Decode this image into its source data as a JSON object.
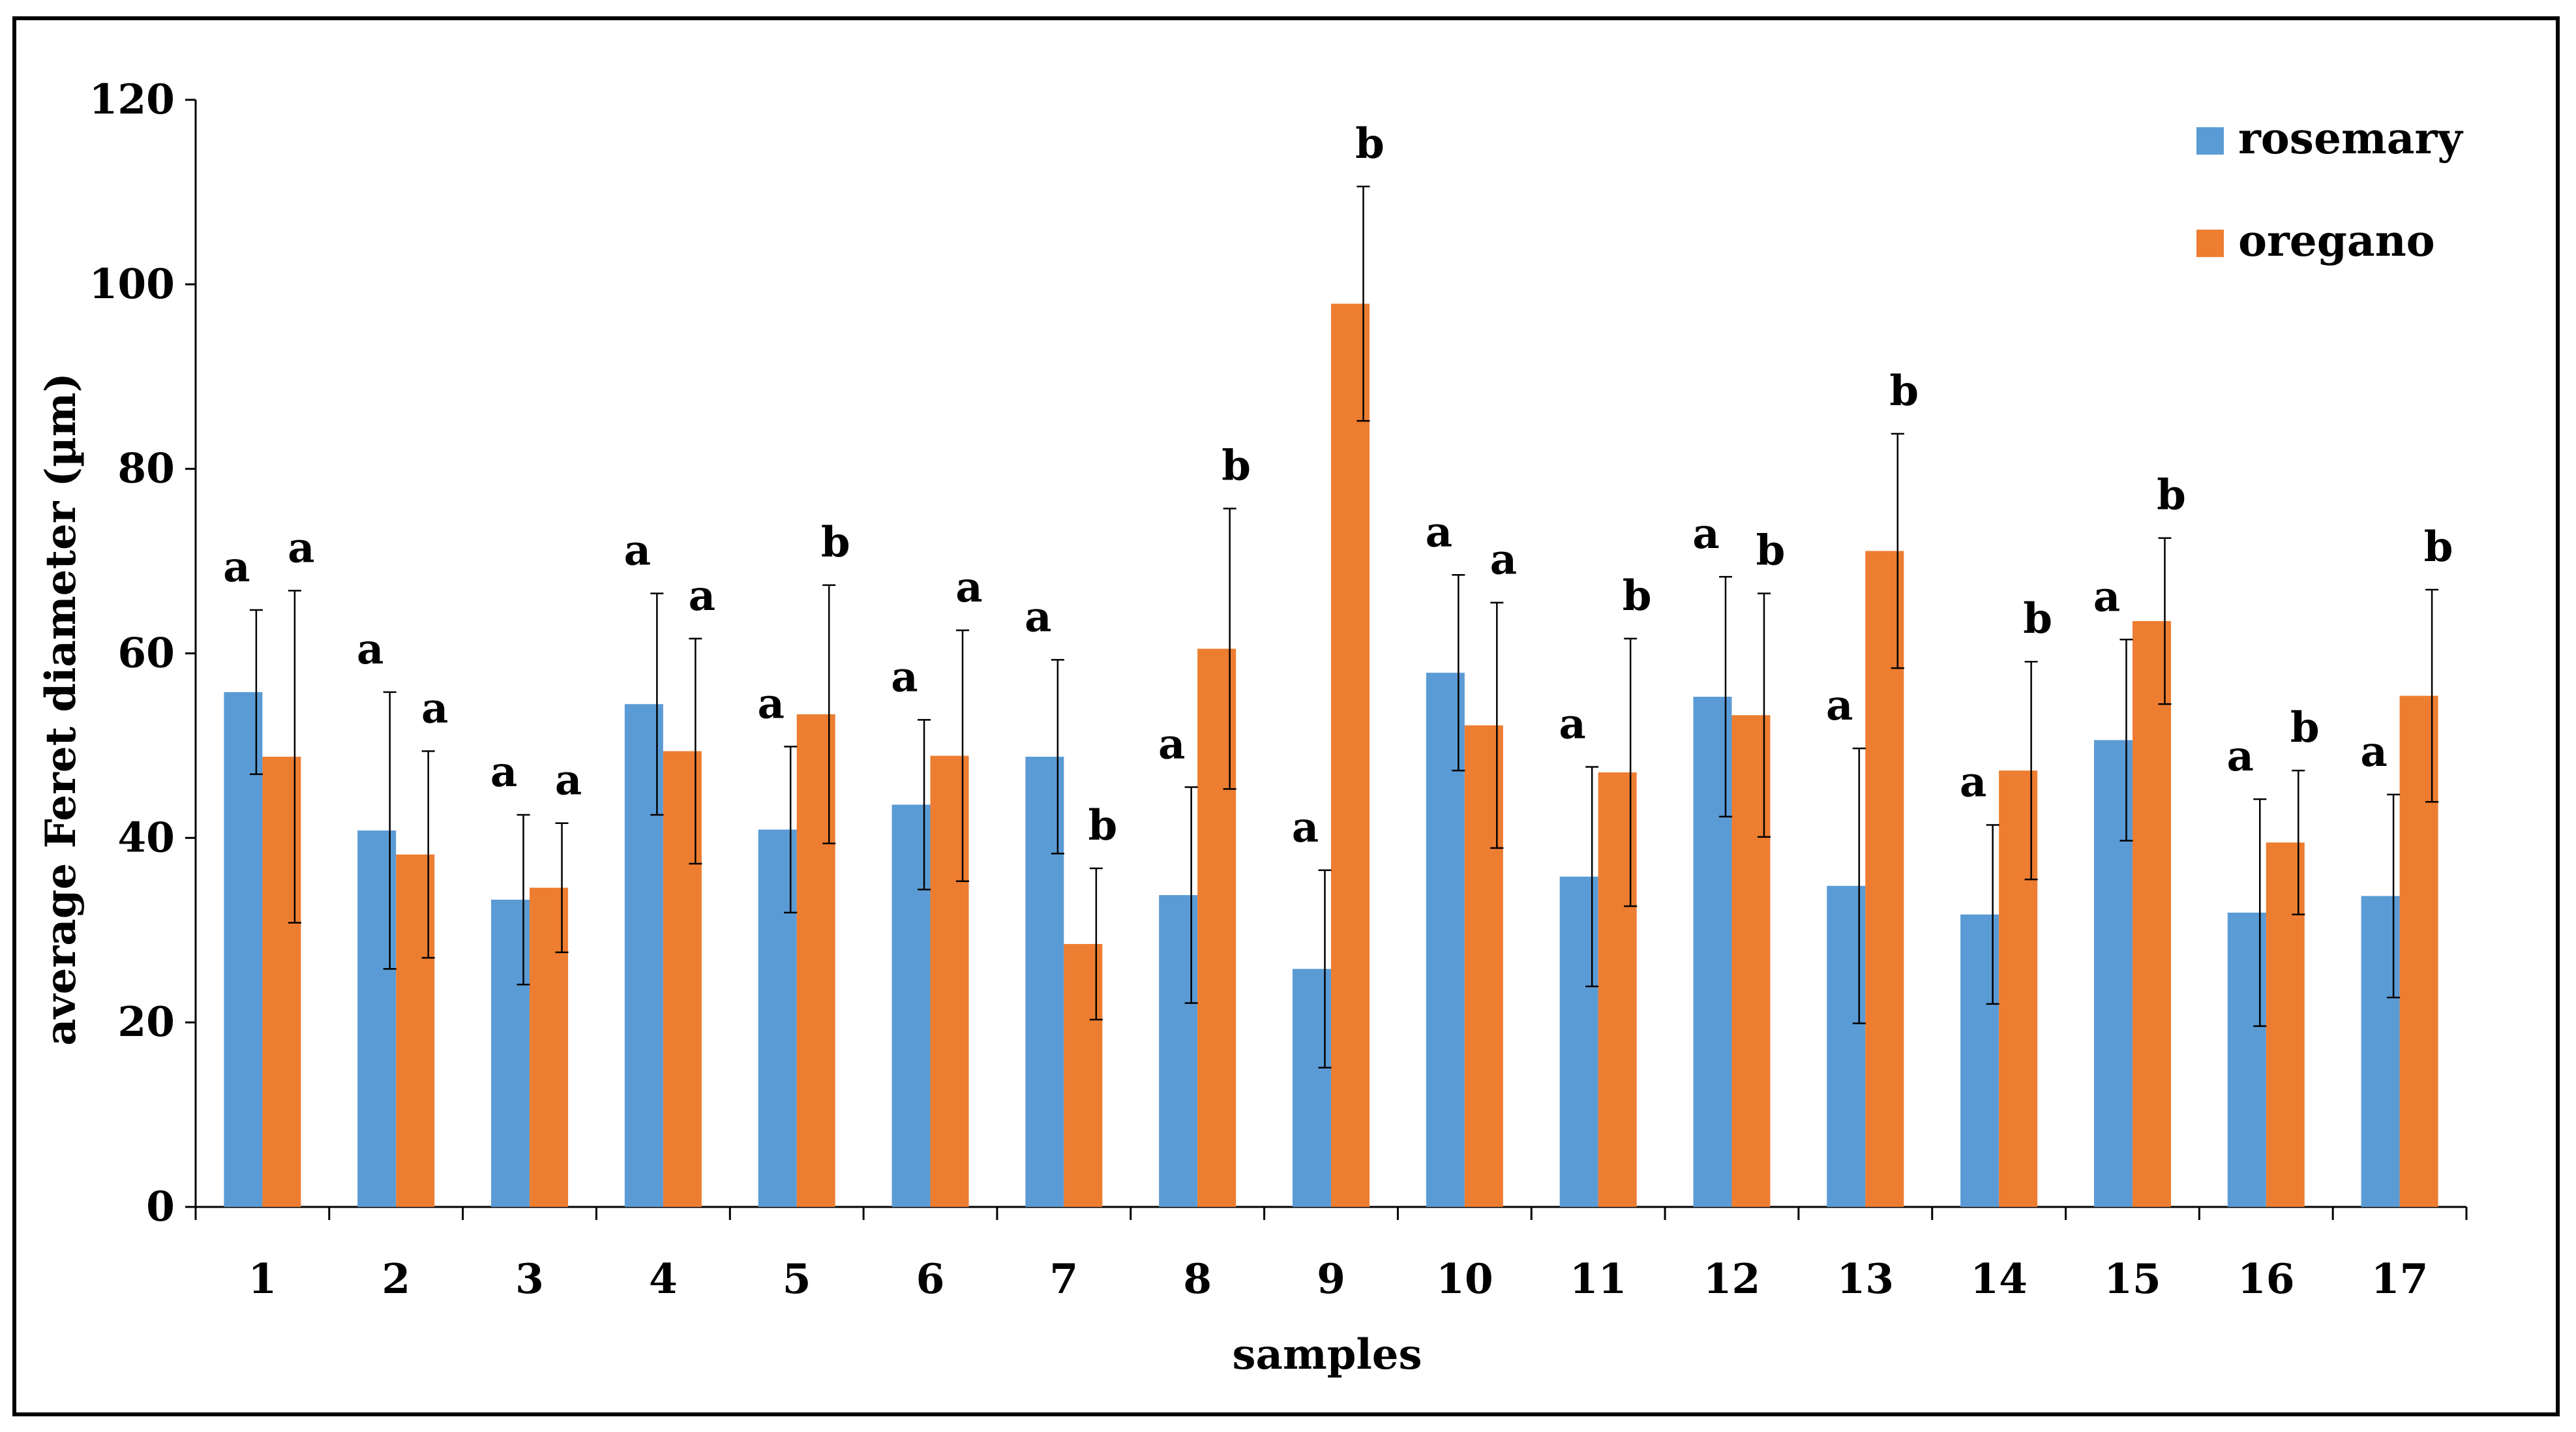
{
  "chart_data": {
    "type": "bar",
    "title": "",
    "xlabel": "samples",
    "ylabel": "average Feret diameter (µm)",
    "ylim": [
      0,
      120
    ],
    "yticks": [
      0,
      20,
      40,
      60,
      80,
      100,
      120
    ],
    "grid": false,
    "legend_position": "top-right",
    "categories": [
      "1",
      "2",
      "3",
      "4",
      "5",
      "6",
      "7",
      "8",
      "9",
      "10",
      "11",
      "12",
      "13",
      "14",
      "15",
      "16",
      "17"
    ],
    "series": [
      {
        "name": "rosemary",
        "color": "#5b9bd5",
        "values": [
          55.8,
          40.8,
          33.3,
          54.5,
          40.9,
          43.6,
          48.8,
          33.8,
          25.8,
          57.9,
          35.8,
          55.3,
          34.8,
          31.7,
          50.6,
          31.9,
          33.7
        ],
        "errors": [
          8.9,
          15.0,
          9.2,
          12.0,
          9.0,
          9.2,
          10.5,
          11.7,
          10.7,
          10.6,
          11.9,
          13.0,
          14.9,
          9.7,
          10.9,
          12.3,
          11.0
        ],
        "letters": [
          "a",
          "a",
          "a",
          "a",
          "a",
          "a",
          "a",
          "a",
          "a",
          "a",
          "a",
          "a",
          "a",
          "a",
          "a",
          "a",
          "a"
        ]
      },
      {
        "name": "oregano",
        "color": "#ed7d31",
        "values": [
          48.8,
          38.2,
          34.6,
          49.4,
          53.4,
          48.9,
          28.5,
          60.5,
          97.9,
          52.2,
          47.1,
          53.3,
          71.1,
          47.3,
          63.5,
          39.5,
          55.4
        ],
        "errors": [
          18.0,
          11.2,
          7.0,
          12.2,
          14.0,
          13.6,
          8.2,
          15.2,
          12.7,
          13.3,
          14.5,
          13.2,
          12.7,
          11.8,
          9.0,
          7.8,
          11.5
        ],
        "letters": [
          "a",
          "a",
          "a",
          "a",
          "b",
          "a",
          "b",
          "b",
          "b",
          "a",
          "b",
          "b",
          "b",
          "b",
          "b",
          "b",
          "b"
        ]
      }
    ]
  }
}
